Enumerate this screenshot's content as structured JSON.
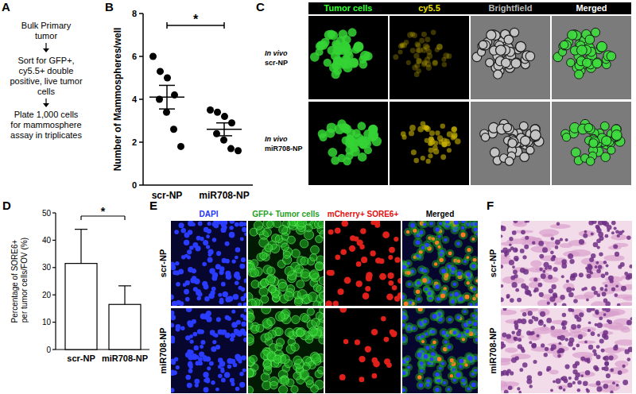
{
  "panel_labels": [
    "A",
    "B",
    "C",
    "D",
    "E",
    "F"
  ],
  "flowchart": {
    "steps": [
      "Bulk Primary tumor",
      "Sort for GFP+, cy5.5+ double positive, live tumor cells",
      "Plate 1,000 cells for mammosphere assay in triplicates"
    ]
  },
  "chart_data": [
    {
      "type": "scatter",
      "categories": [
        "scr-NP",
        "miR708-NP"
      ],
      "ylabel": "Number of Mammospheres/well",
      "values": [
        [
          6.0,
          5.3,
          5.0,
          4.2,
          4.0,
          3.4,
          2.6,
          1.8
        ],
        [
          3.5,
          3.4,
          3.2,
          2.9,
          2.4,
          2.1,
          1.7,
          1.6
        ]
      ],
      "mean": [
        4.1,
        2.6
      ],
      "error": [
        0.55,
        0.3
      ],
      "ylim": [
        0,
        8
      ],
      "yticks": [
        0,
        2,
        4,
        6,
        8
      ],
      "color": "#000000",
      "marker": "circle",
      "annotations": [
        "*"
      ]
    },
    {
      "type": "bar",
      "categories": [
        "scr-NP",
        "miR708-NP"
      ],
      "ylabel": "Percentage of SORE6+ per tumor cells/FOV (%)",
      "values": [
        31.5,
        16.5
      ],
      "error": [
        12.5,
        6.8
      ],
      "ylim": [
        0,
        50
      ],
      "yticks": [
        0,
        10,
        20,
        30,
        40,
        50
      ],
      "color": "#ffffff",
      "annotations": [
        "*"
      ]
    }
  ],
  "panel_c": {
    "channels": [
      "Tumor cells",
      "cy5.5",
      "Brightfield",
      "Merged"
    ],
    "rows": [
      {
        "condition": "In vivo",
        "label": "scr-NP"
      },
      {
        "condition": "In vivo",
        "label": "miR708-NP"
      }
    ]
  },
  "panel_e": {
    "channels": [
      "DAPI",
      "GFP+ Tumor cells",
      "mCherry+ SORE6+",
      "Merged"
    ],
    "rows": [
      "scr-NP",
      "miR708-NP"
    ]
  },
  "panel_f": {
    "rows": [
      "scr-NP",
      "miR708-NP"
    ]
  }
}
